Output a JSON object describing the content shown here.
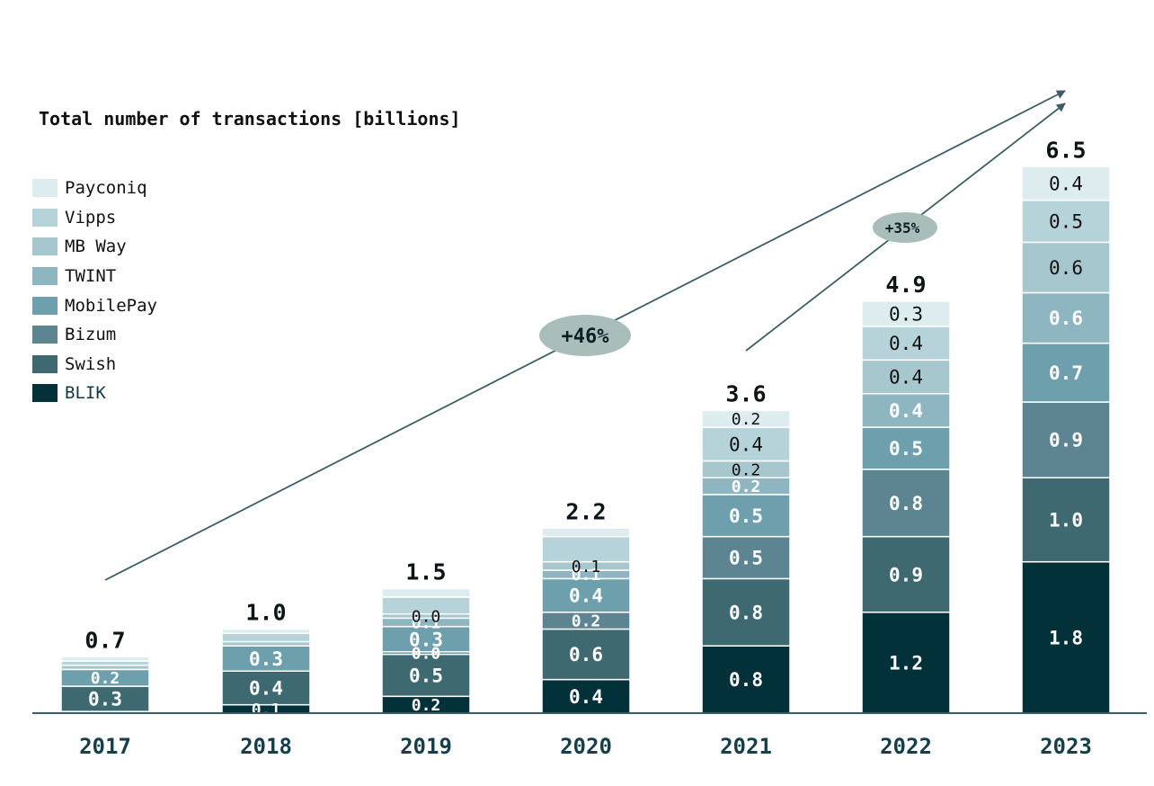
{
  "chart_data": {
    "type": "bar",
    "stacked": true,
    "title": "Total number of transactions [billions]",
    "categories": [
      "2017",
      "2018",
      "2019",
      "2020",
      "2021",
      "2022",
      "2023"
    ],
    "totals": [
      "0.7",
      "1.0",
      "1.5",
      "2.2",
      "3.6",
      "4.9",
      "6.5"
    ],
    "series": [
      {
        "name": "BLIK",
        "color": "#02313a",
        "values": [
          0.02,
          0.1,
          0.2,
          0.4,
          0.8,
          1.2,
          1.8
        ],
        "labels": [
          "",
          "0.1",
          "0.2",
          "0.4",
          "0.8",
          "1.2",
          "1.8"
        ]
      },
      {
        "name": "Swish",
        "color": "#3f6970",
        "values": [
          0.3,
          0.4,
          0.5,
          0.6,
          0.8,
          0.9,
          1.0
        ],
        "labels": [
          "0.3",
          "0.4",
          "0.5",
          "0.6",
          "0.8",
          "0.9",
          "1.0"
        ]
      },
      {
        "name": "Bizum",
        "color": "#5c8591",
        "values": [
          0.0,
          0.0,
          0.03,
          0.2,
          0.5,
          0.8,
          0.9
        ],
        "labels": [
          "",
          "",
          "0.0",
          "0.2",
          "0.5",
          "0.8",
          "0.9"
        ]
      },
      {
        "name": "MobilePay",
        "color": "#6d9fac",
        "values": [
          0.2,
          0.3,
          0.3,
          0.4,
          0.5,
          0.5,
          0.7
        ],
        "labels": [
          "0.2",
          "0.3",
          "0.3",
          "0.4",
          "0.5",
          "0.5",
          "0.7"
        ]
      },
      {
        "name": "TWINT",
        "color": "#8db6c1",
        "values": [
          0.0,
          0.0,
          0.1,
          0.1,
          0.2,
          0.4,
          0.6
        ],
        "labels": [
          "",
          "",
          "0.1",
          "0.1",
          "0.2",
          "0.4",
          "0.6"
        ]
      },
      {
        "name": "MB Way",
        "color": "#a7c7cf",
        "values": [
          0.05,
          0.05,
          0.05,
          0.1,
          0.2,
          0.4,
          0.6
        ],
        "labels": [
          "",
          "",
          "0.0",
          "0.1",
          "0.2",
          "0.4",
          "0.6"
        ]
      },
      {
        "name": "Vipps",
        "color": "#b6d3d9",
        "values": [
          0.05,
          0.1,
          0.2,
          0.3,
          0.4,
          0.4,
          0.5
        ],
        "labels": [
          "",
          "",
          "",
          "",
          "0.4",
          "0.4",
          "0.5"
        ]
      },
      {
        "name": "Payconiq",
        "color": "#dcecef",
        "values": [
          0.05,
          0.05,
          0.1,
          0.1,
          0.2,
          0.3,
          0.4
        ],
        "labels": [
          "",
          "",
          "",
          "",
          "0.2",
          "0.3",
          "0.4"
        ]
      }
    ],
    "annotations": [
      "+46%",
      "+35%"
    ]
  }
}
